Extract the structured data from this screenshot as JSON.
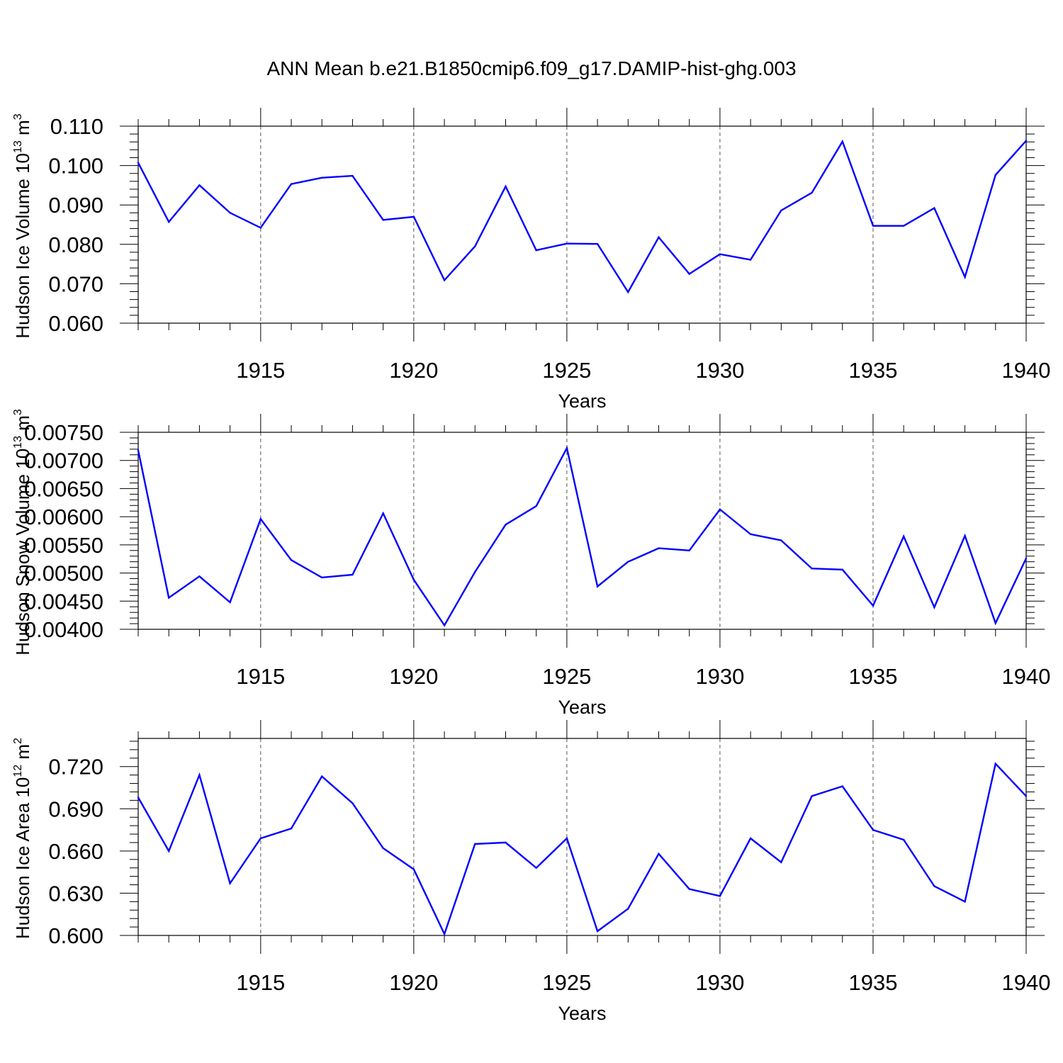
{
  "title": "ANN Mean b.e21.B1850cmip6.f09_g17.DAMIP-hist-ghg.003",
  "chart_data": [
    {
      "type": "line",
      "ylabel": {
        "text": "Hudson Ice Volume 10",
        "exp": "13",
        "unit": " m",
        "unit_exp": "3"
      },
      "xlabel": "Years",
      "xlim": [
        1911,
        1940
      ],
      "ylim": [
        0.06,
        0.11
      ],
      "yticks": [
        0.06,
        0.07,
        0.08,
        0.09,
        0.1,
        0.11
      ],
      "ytick_labels": [
        "0.060",
        "0.070",
        "0.080",
        "0.090",
        "0.100",
        "0.110"
      ],
      "xticks": [
        1915,
        1920,
        1925,
        1930,
        1935,
        1940
      ],
      "xtick_labels": [
        "1915",
        "1920",
        "1925",
        "1930",
        "1935",
        "1940"
      ],
      "line_color": "#0000ff",
      "x": [
        1911,
        1912,
        1913,
        1914,
        1915,
        1916,
        1917,
        1918,
        1919,
        1920,
        1921,
        1922,
        1923,
        1924,
        1925,
        1926,
        1927,
        1928,
        1929,
        1930,
        1931,
        1932,
        1933,
        1934,
        1935,
        1936,
        1937,
        1938,
        1939,
        1940
      ],
      "y": [
        0.1007,
        0.0857,
        0.095,
        0.088,
        0.0842,
        0.0953,
        0.0969,
        0.0974,
        0.0862,
        0.087,
        0.0709,
        0.0795,
        0.0947,
        0.0785,
        0.0802,
        0.0801,
        0.0679,
        0.0818,
        0.0725,
        0.0775,
        0.0761,
        0.0886,
        0.0931,
        0.1061,
        0.0847,
        0.0847,
        0.0892,
        0.0717,
        0.0976,
        0.1063
      ]
    },
    {
      "type": "line",
      "ylabel": {
        "text": "Hudson Snow Volume 10",
        "exp": "13",
        "unit": " m",
        "unit_exp": "3"
      },
      "xlabel": "Years",
      "xlim": [
        1911,
        1940
      ],
      "ylim": [
        0.004,
        0.0075
      ],
      "yticks": [
        0.004,
        0.0045,
        0.005,
        0.0055,
        0.006,
        0.0065,
        0.007,
        0.0075
      ],
      "ytick_labels": [
        "0.00400",
        "0.00450",
        "0.00500",
        "0.00550",
        "0.00600",
        "0.00650",
        "0.00700",
        "0.00750"
      ],
      "xticks": [
        1915,
        1920,
        1925,
        1930,
        1935,
        1940
      ],
      "xtick_labels": [
        "1915",
        "1920",
        "1925",
        "1930",
        "1935",
        "1940"
      ],
      "line_color": "#0000ff",
      "x": [
        1911,
        1912,
        1913,
        1914,
        1915,
        1916,
        1917,
        1918,
        1919,
        1920,
        1921,
        1922,
        1923,
        1924,
        1925,
        1926,
        1927,
        1928,
        1929,
        1930,
        1931,
        1932,
        1933,
        1934,
        1935,
        1936,
        1937,
        1938,
        1939,
        1940
      ],
      "y": [
        0.00718,
        0.00456,
        0.00494,
        0.00448,
        0.00596,
        0.00523,
        0.00492,
        0.00497,
        0.00606,
        0.00488,
        0.00407,
        0.00502,
        0.00586,
        0.00619,
        0.00722,
        0.00476,
        0.0052,
        0.00544,
        0.0054,
        0.00613,
        0.00569,
        0.00558,
        0.00508,
        0.00506,
        0.00442,
        0.00565,
        0.00439,
        0.00566,
        0.00411,
        0.00526
      ]
    },
    {
      "type": "line",
      "ylabel": {
        "text": "Hudson Ice Area 10",
        "exp": "12",
        "unit": " m",
        "unit_exp": "2"
      },
      "xlabel": "Years",
      "xlim": [
        1911,
        1940
      ],
      "ylim": [
        0.6,
        0.74
      ],
      "yticks": [
        0.6,
        0.63,
        0.66,
        0.69,
        0.72
      ],
      "ytick_labels": [
        "0.600",
        "0.630",
        "0.660",
        "0.690",
        "0.720"
      ],
      "xticks": [
        1915,
        1920,
        1925,
        1930,
        1935,
        1940
      ],
      "xtick_labels": [
        "1915",
        "1920",
        "1925",
        "1930",
        "1935",
        "1940"
      ],
      "line_color": "#0000ff",
      "x": [
        1911,
        1912,
        1913,
        1914,
        1915,
        1916,
        1917,
        1918,
        1919,
        1920,
        1921,
        1922,
        1923,
        1924,
        1925,
        1926,
        1927,
        1928,
        1929,
        1930,
        1931,
        1932,
        1933,
        1934,
        1935,
        1936,
        1937,
        1938,
        1939,
        1940
      ],
      "y": [
        0.698,
        0.66,
        0.714,
        0.637,
        0.669,
        0.676,
        0.713,
        0.694,
        0.662,
        0.647,
        0.601,
        0.665,
        0.666,
        0.648,
        0.669,
        0.603,
        0.619,
        0.658,
        0.633,
        0.628,
        0.669,
        0.652,
        0.699,
        0.706,
        0.675,
        0.668,
        0.635,
        0.624,
        0.722,
        0.699
      ]
    }
  ]
}
